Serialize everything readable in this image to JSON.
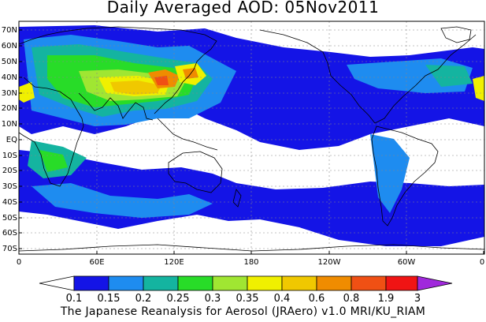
{
  "title": "Daily Averaged AOD: 05Nov2011",
  "credit": "The Japanese Reanalysis for Aerosol (JRAero) v1.0 MRI/KU_RIAM",
  "lat_ticks": [
    "70N",
    "60N",
    "50N",
    "40N",
    "30N",
    "20N",
    "10N",
    "EQ",
    "10S",
    "20S",
    "30S",
    "40S",
    "50S",
    "60S",
    "70S"
  ],
  "lon_ticks": [
    "0",
    "60E",
    "120E",
    "180",
    "120W",
    "60W",
    "0"
  ],
  "colorbar": {
    "labels": [
      "0.1",
      "0.15",
      "0.2",
      "0.25",
      "0.3",
      "0.35",
      "0.4",
      "0.6",
      "0.8",
      "1.9",
      "3"
    ],
    "colors": [
      "#ffffff",
      "#1414e6",
      "#1e8cf0",
      "#14b4a0",
      "#28dc28",
      "#a0e632",
      "#f0f000",
      "#f0c800",
      "#f08c00",
      "#f05014",
      "#f01414",
      "#a028dc"
    ]
  }
}
